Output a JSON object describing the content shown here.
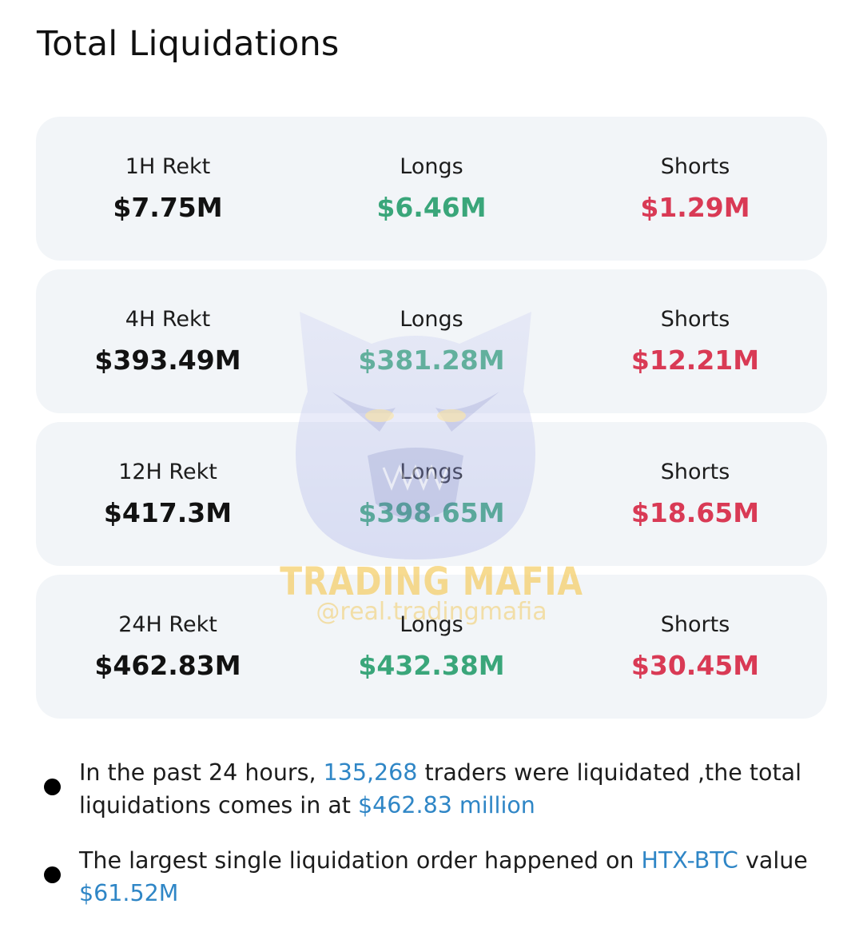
{
  "title": "Total Liquidations",
  "colors": {
    "long": "#3aa67a",
    "short": "#d93a55",
    "highlight": "#2f86c6",
    "card_bg": "#f2f5f8"
  },
  "rows": [
    {
      "label": "1H Rekt",
      "total": "$7.75M",
      "longs_label": "Longs",
      "longs": "$6.46M",
      "shorts_label": "Shorts",
      "shorts": "$1.29M"
    },
    {
      "label": "4H Rekt",
      "total": "$393.49M",
      "longs_label": "Longs",
      "longs": "$381.28M",
      "shorts_label": "Shorts",
      "shorts": "$12.21M"
    },
    {
      "label": "12H Rekt",
      "total": "$417.3M",
      "longs_label": "Longs",
      "longs": "$398.65M",
      "shorts_label": "Shorts",
      "shorts": "$18.65M"
    },
    {
      "label": "24H Rekt",
      "total": "$462.83M",
      "longs_label": "Longs",
      "longs": "$432.38M",
      "shorts_label": "Shorts",
      "shorts": "$30.45M"
    }
  ],
  "watermark": {
    "brand": "TRADING MAFIA",
    "handle": "@real.tradingmafia",
    "icon": "tiger-head-icon"
  },
  "bullets": [
    {
      "p1": "In the past 24 hours, ",
      "h1": "135,268",
      "p2": " traders were liquidated ,the total liquidations comes in at ",
      "h2": "$462.83 million"
    },
    {
      "p1": "The largest single liquidation order happened on ",
      "h1": "HTX-BTC",
      "p2": " value ",
      "h2": "$61.52M"
    }
  ]
}
